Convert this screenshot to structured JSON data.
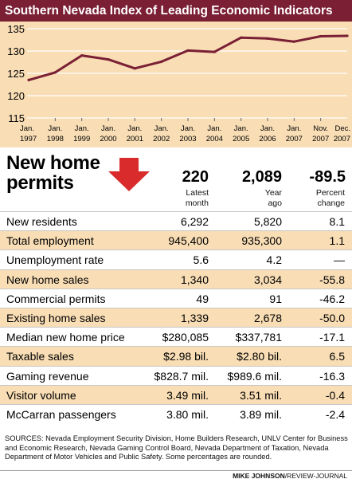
{
  "chart_data": {
    "type": "line",
    "title": "Southern Nevada Index of Leading Economic Indicators",
    "x": [
      [
        "Jan.",
        "1997"
      ],
      [
        "Jan.",
        "1998"
      ],
      [
        "Jan.",
        "1999"
      ],
      [
        "Jan.",
        "2000"
      ],
      [
        "Jan.",
        "2001"
      ],
      [
        "Jan.",
        "2002"
      ],
      [
        "Jan.",
        "2003"
      ],
      [
        "Jan.",
        "2004"
      ],
      [
        "Jan.",
        "2005"
      ],
      [
        "Jan.",
        "2006"
      ],
      [
        "Jan.",
        "2007"
      ],
      [
        "Nov.",
        "2007"
      ],
      [
        "Dec.",
        "2007"
      ]
    ],
    "values": [
      123.5,
      125.2,
      129.0,
      128.1,
      126.1,
      127.6,
      130.1,
      129.8,
      133.0,
      132.8,
      132.1,
      133.3,
      133.4
    ],
    "ylim": [
      115,
      135
    ],
    "yticks": [
      115,
      120,
      125,
      130,
      135
    ],
    "grid": true,
    "colors": {
      "line": "#7a1f34",
      "background": "#f8ddb5",
      "grid": "#ffffff",
      "title_bar": "#7a1f34"
    }
  },
  "new_home_permits": {
    "title_line1": "New home",
    "title_line2": "permits",
    "arrow_icon": "down-arrow-icon",
    "arrow_color": "#d92b2b",
    "latest_value": "220",
    "latest_label_1": "Latest",
    "latest_label_2": "month",
    "year_ago_value": "2,089",
    "year_ago_label_1": "Year",
    "year_ago_label_2": "ago",
    "percent_value": "-89.5",
    "percent_label_1": "Percent",
    "percent_label_2": "change"
  },
  "table": {
    "rows": [
      {
        "label": "New residents",
        "latest": "6,292",
        "year_ago": "5,820",
        "pct": "8.1",
        "shaded": false
      },
      {
        "label": "Total employment",
        "latest": "945,400",
        "year_ago": "935,300",
        "pct": "1.1",
        "shaded": true
      },
      {
        "label": "Unemployment rate",
        "latest": "5.6",
        "year_ago": "4.2",
        "pct": "—",
        "shaded": false
      },
      {
        "label": "New home sales",
        "latest": "1,340",
        "year_ago": "3,034",
        "pct": "-55.8",
        "shaded": true
      },
      {
        "label": "Commercial permits",
        "latest": "49",
        "year_ago": "91",
        "pct": "-46.2",
        "shaded": false
      },
      {
        "label": "Existing home sales",
        "latest": "1,339",
        "year_ago": "2,678",
        "pct": "-50.0",
        "shaded": true
      },
      {
        "label": "Median new home price",
        "latest": "$280,085",
        "year_ago": "$337,781",
        "pct": "-17.1",
        "shaded": false
      },
      {
        "label": "Taxable sales",
        "latest": "$2.98 bil.",
        "year_ago": "$2.80 bil.",
        "pct": "6.5",
        "shaded": true
      },
      {
        "label": "Gaming revenue",
        "latest": "$828.7 mil.",
        "year_ago": "$989.6 mil.",
        "pct": "-16.3",
        "shaded": false
      },
      {
        "label": "Visitor volume",
        "latest": "3.49 mil.",
        "year_ago": "3.51 mil.",
        "pct": "-0.4",
        "shaded": true
      },
      {
        "label": "McCarran passengers",
        "latest": "3.80 mil.",
        "year_ago": "3.89 mil.",
        "pct": "-2.4",
        "shaded": false
      }
    ],
    "shade_color": "#f8ddb5"
  },
  "sources": "SOURCES: Nevada Employment Security Division, Home Builders Research, UNLV Center for Business and Economic Research, Nevada Gaming Control Board, Nevada Department of Taxation, Nevada Department of Motor Vehicles and Public Safety. Some percentages are rounded.",
  "credit": {
    "name": "MIKE JOHNSON",
    "outlet": "/REVIEW-JOURNAL"
  }
}
